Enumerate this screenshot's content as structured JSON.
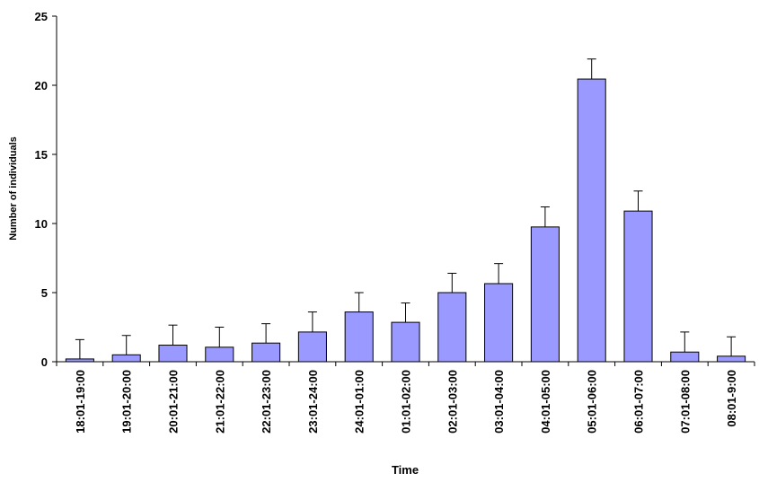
{
  "chart_data": {
    "type": "bar",
    "x_label": "Time",
    "y_label": "Number of individuals",
    "categories": [
      "18:01-19:00",
      "19:01-20:00",
      "20:01-21:00",
      "21:01-22:00",
      "22:01-23:00",
      "23:01-24:00",
      "24:01-01:00",
      "01:01-02:00",
      "02:01-03:00",
      "03:01-04:00",
      "04:01-05:00",
      "05:01-06:00",
      "06:01-07:00",
      "07:01-08:00",
      "08:01-9:00"
    ],
    "values": [
      0.2,
      0.5,
      1.2,
      1.05,
      1.35,
      2.15,
      3.6,
      2.85,
      5.0,
      5.65,
      9.75,
      20.45,
      10.9,
      0.7,
      0.4
    ],
    "errors": [
      1.4,
      1.4,
      1.45,
      1.45,
      1.4,
      1.45,
      1.4,
      1.4,
      1.4,
      1.45,
      1.45,
      1.45,
      1.45,
      1.45,
      1.4
    ],
    "color": "#9999ff",
    "ylim": [
      0,
      25
    ],
    "yticks": [
      0,
      5,
      10,
      15,
      20,
      25
    ],
    "grid": false
  }
}
